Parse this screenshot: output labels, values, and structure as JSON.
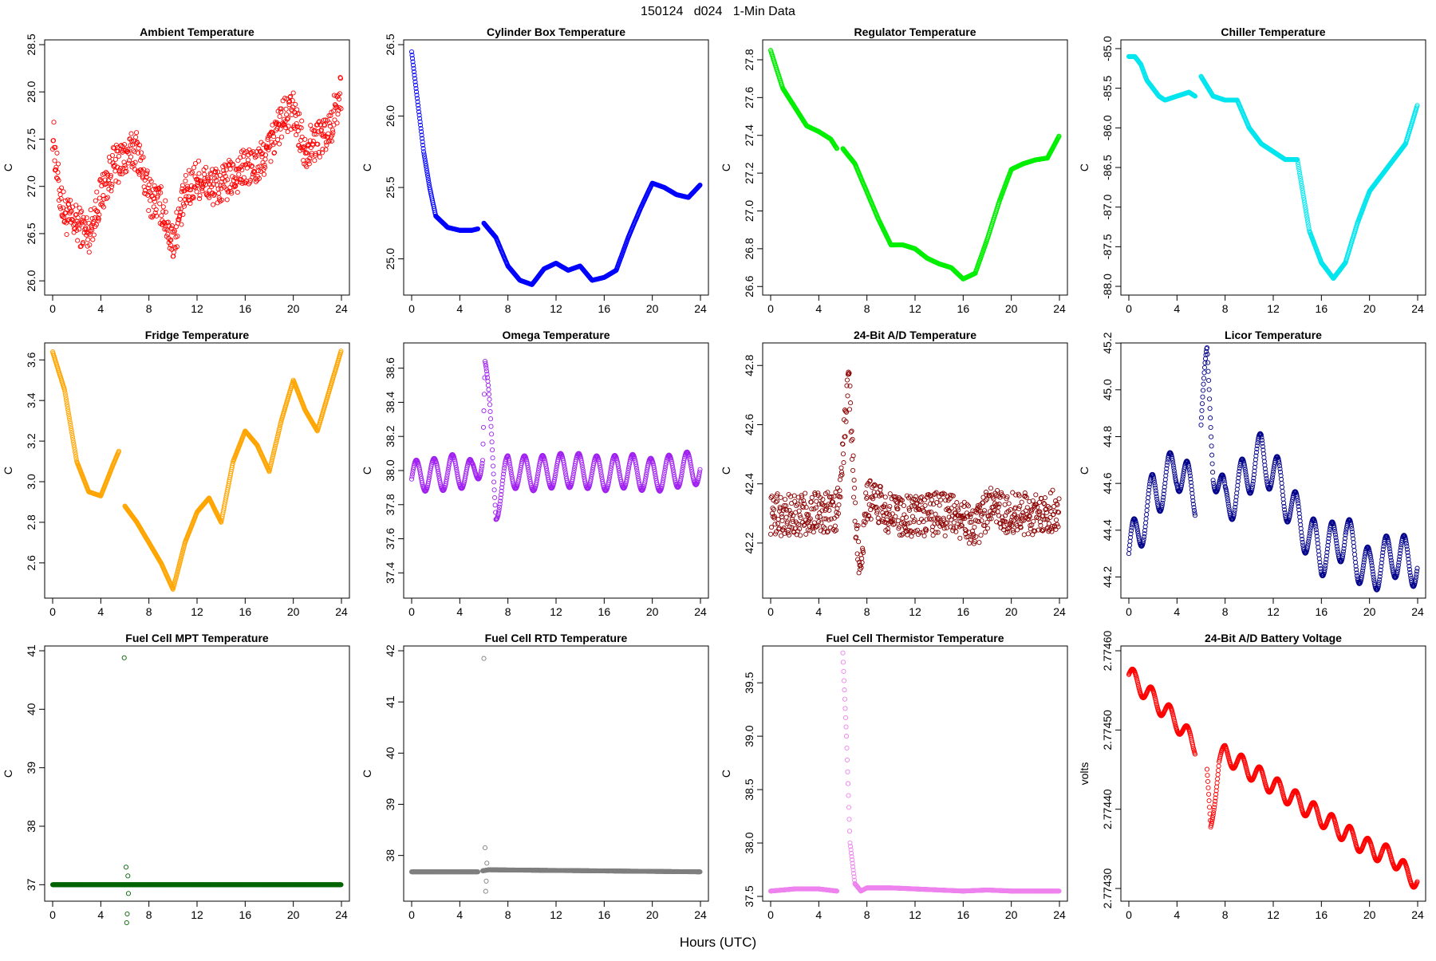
{
  "main_title": "150124   d024   1-Min Data",
  "common_xlabel": "Hours (UTC)",
  "x_range": [
    0,
    24
  ],
  "x_ticks": [
    0,
    4,
    8,
    12,
    16,
    20,
    24
  ],
  "chart_data": [
    {
      "type": "scatter",
      "title": "Ambient Temperature",
      "ylabel": "C",
      "color": "#ff0000",
      "ylim": [
        25.9,
        28.5
      ],
      "yticks": [
        26.0,
        26.5,
        27.0,
        27.5,
        28.0,
        28.5
      ],
      "ytick_labels": [
        "26.0",
        "26.5",
        "27.0",
        "27.5",
        "28.0",
        "28.5"
      ],
      "noise": 0.35,
      "gap": null,
      "x": [
        0,
        0.5,
        1,
        2,
        3,
        4,
        5,
        6,
        7,
        8,
        9,
        10,
        11,
        12,
        13,
        14,
        15,
        16,
        17,
        18,
        19,
        20,
        21,
        22,
        23,
        24
      ],
      "y": [
        27.6,
        27.0,
        26.7,
        26.6,
        26.5,
        26.9,
        27.2,
        27.3,
        27.4,
        26.9,
        26.8,
        26.4,
        26.9,
        27.1,
        27.0,
        27.0,
        27.1,
        27.2,
        27.2,
        27.4,
        27.7,
        27.8,
        27.4,
        27.5,
        27.6,
        28.0
      ]
    },
    {
      "type": "scatter",
      "title": "Cylinder Box Temperature",
      "ylabel": "C",
      "color": "#0000ff",
      "ylim": [
        24.78,
        26.5
      ],
      "yticks": [
        25.0,
        25.5,
        26.0,
        26.5
      ],
      "ytick_labels": [
        "25.0",
        "25.5",
        "26.0",
        "26.5"
      ],
      "noise": 0.0,
      "gap": [
        5.5,
        6.0
      ],
      "x": [
        0,
        0.5,
        1,
        1.5,
        2,
        3,
        4,
        5,
        5.5,
        6,
        7,
        8,
        9,
        10,
        11,
        12,
        13,
        14,
        15,
        16,
        17,
        18,
        19,
        20,
        21,
        22,
        23,
        24
      ],
      "y": [
        26.45,
        26.1,
        25.75,
        25.5,
        25.3,
        25.22,
        25.2,
        25.2,
        25.21,
        25.25,
        25.15,
        24.95,
        24.85,
        24.82,
        24.93,
        24.97,
        24.92,
        24.95,
        24.85,
        24.87,
        24.92,
        25.15,
        25.35,
        25.53,
        25.5,
        25.45,
        25.43,
        25.52
      ]
    },
    {
      "type": "scatter",
      "title": "Regulator Temperature",
      "ylabel": "C",
      "color": "#00ee00",
      "ylim": [
        26.58,
        27.88
      ],
      "yticks": [
        26.6,
        26.8,
        27.0,
        27.2,
        27.4,
        27.6,
        27.8
      ],
      "ytick_labels": [
        "26.6",
        "26.8",
        "27.0",
        "27.2",
        "27.4",
        "27.6",
        "27.8"
      ],
      "noise": 0.0,
      "gap": [
        5.5,
        6.0
      ],
      "x": [
        0,
        0.5,
        1,
        2,
        3,
        4,
        5,
        5.5,
        6,
        7,
        8,
        9,
        10,
        11,
        12,
        13,
        14,
        15,
        16,
        17,
        18,
        19,
        20,
        21,
        22,
        23,
        24
      ],
      "y": [
        27.85,
        27.75,
        27.65,
        27.55,
        27.45,
        27.42,
        27.38,
        27.33,
        27.33,
        27.25,
        27.1,
        26.95,
        26.82,
        26.82,
        26.8,
        26.75,
        26.72,
        26.7,
        26.64,
        26.67,
        26.85,
        27.05,
        27.22,
        27.25,
        27.27,
        27.28,
        27.4
      ]
    },
    {
      "type": "scatter",
      "title": "Chiller Temperature",
      "ylabel": "C",
      "color": "#00e5ee",
      "ylim": [
        -88.05,
        -84.95
      ],
      "yticks": [
        -88.0,
        -87.5,
        -87.0,
        -86.5,
        -86.0,
        -85.5,
        -85.0
      ],
      "ytick_labels": [
        "-88.0",
        "-87.5",
        "-87.0",
        "-86.5",
        "-86.0",
        "-85.5",
        "-85.0"
      ],
      "noise": 0.0,
      "gap": [
        5.5,
        6.0
      ],
      "x": [
        0,
        0.5,
        1,
        1.5,
        2,
        2.5,
        3,
        4,
        5,
        5.5,
        6,
        7,
        8,
        9,
        10,
        11,
        12,
        13,
        14,
        15,
        16,
        17,
        18,
        19,
        20,
        21,
        22,
        23,
        24
      ],
      "y": [
        -85.1,
        -85.1,
        -85.2,
        -85.4,
        -85.5,
        -85.6,
        -85.65,
        -85.6,
        -85.55,
        -85.6,
        -85.35,
        -85.6,
        -85.65,
        -85.65,
        -86.0,
        -86.2,
        -86.3,
        -86.4,
        -86.4,
        -87.3,
        -87.7,
        -87.9,
        -87.7,
        -87.2,
        -86.8,
        -86.6,
        -86.4,
        -86.2,
        -85.7
      ]
    },
    {
      "type": "scatter",
      "title": "Fridge Temperature",
      "ylabel": "C",
      "color": "#ffa500",
      "ylim": [
        2.45,
        3.66
      ],
      "yticks": [
        2.6,
        2.8,
        3.0,
        3.2,
        3.4,
        3.6
      ],
      "ytick_labels": [
        "2.6",
        "2.8",
        "3.0",
        "3.2",
        "3.4",
        "3.6"
      ],
      "noise": 0.0,
      "gap": [
        5.5,
        6.0
      ],
      "x": [
        0,
        1,
        2,
        3,
        4,
        5,
        5.5,
        6,
        7,
        8,
        9,
        10,
        11,
        12,
        13,
        14,
        15,
        16,
        17,
        18,
        19,
        20,
        21,
        22,
        23,
        24
      ],
      "y": [
        3.64,
        3.45,
        3.1,
        2.95,
        2.93,
        3.08,
        3.15,
        2.88,
        2.8,
        2.7,
        2.6,
        2.47,
        2.7,
        2.85,
        2.92,
        2.8,
        3.1,
        3.25,
        3.18,
        3.05,
        3.3,
        3.5,
        3.35,
        3.25,
        3.45,
        3.65
      ]
    },
    {
      "type": "scatter",
      "title": "Omega Temperature",
      "ylabel": "C",
      "color": "#a020f0",
      "ylim": [
        37.28,
        38.72
      ],
      "yticks": [
        37.4,
        37.6,
        37.8,
        38.0,
        38.2,
        38.4,
        38.6
      ],
      "ytick_labels": [
        "37.4",
        "37.6",
        "37.8",
        "38.0",
        "38.2",
        "38.4",
        "38.6"
      ],
      "noise": 0.0,
      "osc": 0.1,
      "gap": null,
      "x": [
        0,
        1,
        2,
        3,
        4,
        5,
        5.9,
        6.1,
        6.5,
        7,
        7.5,
        8,
        10,
        12,
        14,
        16,
        18,
        20,
        22,
        24
      ],
      "y": [
        37.95,
        37.98,
        37.97,
        37.99,
        38.0,
        37.96,
        38.1,
        38.6,
        38.3,
        37.8,
        37.9,
        38.0,
        37.98,
        38.0,
        38.0,
        37.98,
        38.0,
        37.97,
        38.0,
        38.02
      ]
    },
    {
      "type": "scatter",
      "title": "24-Bit A/D Temperature",
      "ylabel": "C",
      "color": "#8b0000",
      "ylim": [
        42.03,
        42.86
      ],
      "yticks": [
        42.2,
        42.4,
        42.6,
        42.8
      ],
      "ytick_labels": [
        "42.2",
        "42.4",
        "42.6",
        "42.8"
      ],
      "noise": 0.12,
      "gap": null,
      "x": [
        0,
        2,
        4,
        5.5,
        6,
        6.5,
        7,
        7.5,
        8,
        10,
        12,
        14,
        16,
        17,
        18,
        20,
        22,
        24
      ],
      "y": [
        42.3,
        42.29,
        42.31,
        42.3,
        42.5,
        42.78,
        42.3,
        42.1,
        42.35,
        42.3,
        42.29,
        42.3,
        42.28,
        42.25,
        42.32,
        42.3,
        42.3,
        42.31
      ]
    },
    {
      "type": "scatter",
      "title": "Licor Temperature",
      "ylabel": "C",
      "color": "#00008b",
      "ylim": [
        44.13,
        45.18
      ],
      "yticks": [
        44.2,
        44.4,
        44.6,
        44.8,
        45.0,
        45.2
      ],
      "ytick_labels": [
        "44.2",
        "44.4",
        "44.6",
        "44.8",
        "45.0",
        "45.2"
      ],
      "noise": 0.0,
      "osc": 0.1,
      "gap": [
        5.5,
        6.0
      ],
      "x": [
        0,
        1,
        2,
        3,
        4,
        5,
        5.5,
        6,
        6.5,
        7,
        8,
        10,
        11,
        12,
        13,
        14,
        16,
        18,
        19,
        20,
        22,
        24
      ],
      "y": [
        44.3,
        44.42,
        44.55,
        44.6,
        44.68,
        44.58,
        44.55,
        44.85,
        45.1,
        44.7,
        44.5,
        44.65,
        44.72,
        44.65,
        44.55,
        44.45,
        44.3,
        44.38,
        44.28,
        44.22,
        44.3,
        44.25
      ]
    },
    {
      "type": "scatter",
      "title": "Fuel Cell MPT Temperature",
      "ylabel": "C",
      "color": "#006400",
      "ylim": [
        36.8,
        41.0
      ],
      "yticks": [
        37,
        38,
        39,
        40,
        41
      ],
      "ytick_labels": [
        "37",
        "38",
        "39",
        "40",
        "41"
      ],
      "noise": 0.0,
      "gap": null,
      "x": [
        0,
        6,
        24
      ],
      "y": [
        37.0,
        37.0,
        37.0
      ],
      "outliers": [
        [
          5.95,
          40.88
        ],
        [
          6.1,
          37.3
        ],
        [
          6.15,
          36.35
        ],
        [
          6.2,
          36.5
        ],
        [
          6.25,
          37.15
        ],
        [
          6.3,
          36.85
        ]
      ]
    },
    {
      "type": "scatter",
      "title": "Fuel Cell RTD Temperature",
      "ylabel": "C",
      "color": "#7f7f7f",
      "ylim": [
        37.2,
        42.0
      ],
      "yticks": [
        38,
        39,
        40,
        41,
        42
      ],
      "ytick_labels": [
        "38",
        "39",
        "40",
        "41",
        "42"
      ],
      "noise": 0.0,
      "gap": [
        5.5,
        5.9
      ],
      "x": [
        0,
        5.5,
        5.9,
        6.4,
        24
      ],
      "y": [
        37.68,
        37.68,
        37.7,
        37.72,
        37.68
      ],
      "outliers": [
        [
          6.0,
          41.85
        ],
        [
          6.1,
          38.15
        ],
        [
          6.15,
          37.3
        ],
        [
          6.2,
          37.5
        ],
        [
          6.25,
          37.85
        ]
      ]
    },
    {
      "type": "scatter",
      "title": "Fuel Cell Thermistor Temperature",
      "ylabel": "C",
      "color": "#ee82ee",
      "ylim": [
        37.5,
        39.8
      ],
      "yticks": [
        37.5,
        38.0,
        38.5,
        39.0,
        39.5
      ],
      "ytick_labels": [
        "37.5",
        "38.0",
        "38.5",
        "39.0",
        "39.5"
      ],
      "noise": 0.0,
      "gap": [
        5.5,
        6.0
      ],
      "x": [
        0,
        2,
        4,
        5.5,
        6.0,
        6.3,
        6.6,
        7.0,
        7.5,
        8,
        10,
        12,
        14,
        16,
        18,
        20,
        22,
        24
      ],
      "y": [
        37.55,
        37.57,
        37.57,
        37.55,
        39.78,
        39.0,
        38.0,
        37.62,
        37.55,
        37.58,
        37.58,
        37.57,
        37.56,
        37.55,
        37.56,
        37.55,
        37.55,
        37.55
      ]
    },
    {
      "type": "scatter",
      "title": "24-Bit A/D Battery Voltage",
      "ylabel": "volts",
      "color": "#ff0000",
      "ylim": [
        2.77429,
        2.7746
      ],
      "yticks": [
        2.7743,
        2.7744,
        2.7745,
        2.7746
      ],
      "ytick_labels": [
        "2.77430",
        "2.77440",
        "2.77450",
        "2.77460"
      ],
      "noise": 0.0,
      "osc": 1.2e-05,
      "gap": [
        5.5,
        6.5
      ],
      "x": [
        0,
        2,
        4,
        5.5,
        6.5,
        6.8,
        7.5,
        8,
        10,
        12,
        14,
        16,
        18,
        20,
        22,
        23,
        24
      ],
      "y": [
        2.77457,
        2.77454,
        2.77451,
        2.77448,
        2.77444,
        2.77438,
        2.77446,
        2.77447,
        2.77445,
        2.77443,
        2.77441,
        2.77439,
        2.77437,
        2.77435,
        2.77434,
        2.77432,
        2.77431
      ]
    }
  ]
}
